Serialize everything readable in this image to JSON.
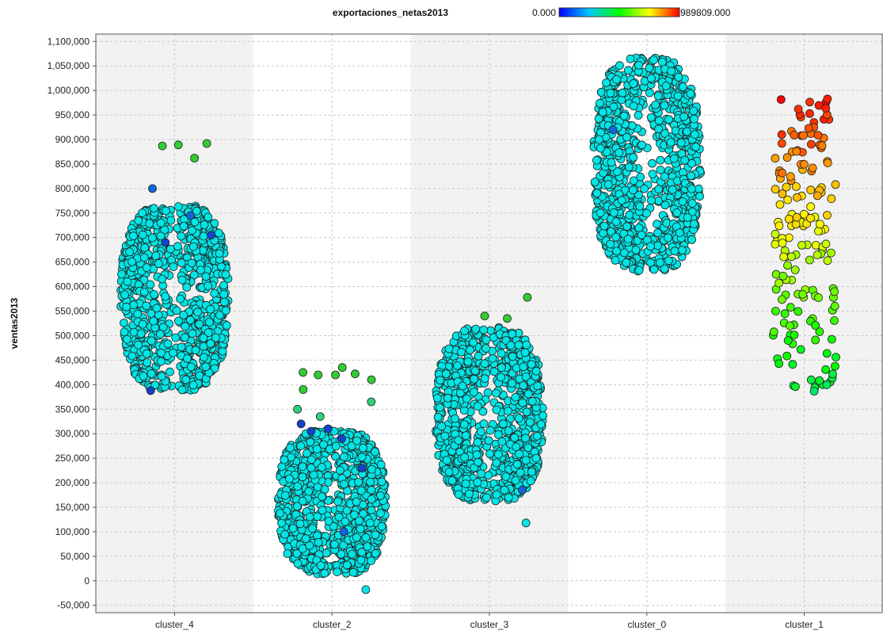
{
  "chart_data": {
    "type": "scatter",
    "x_axis": {
      "categorical": true,
      "categories": [
        "cluster_4",
        "cluster_2",
        "cluster_3",
        "cluster_0",
        "cluster_1"
      ],
      "grid": true
    },
    "y_axis": {
      "label": "ventas2013",
      "ylim": [
        -65000,
        1115000
      ],
      "ticks": [
        -50000,
        0,
        50000,
        100000,
        150000,
        200000,
        250000,
        300000,
        350000,
        400000,
        450000,
        500000,
        550000,
        600000,
        650000,
        700000,
        750000,
        800000,
        850000,
        900000,
        950000,
        1000000,
        1050000,
        1100000
      ],
      "tick_labels": [
        "-50,000",
        "0",
        "50,000",
        "100,000",
        "150,000",
        "200,000",
        "250,000",
        "300,000",
        "350,000",
        "400,000",
        "450,000",
        "500,000",
        "550,000",
        "600,000",
        "650,000",
        "700,000",
        "750,000",
        "800,000",
        "850,000",
        "900,000",
        "950,000",
        "1,000,000",
        "1,050,000",
        "1,100,000"
      ],
      "grid": true
    },
    "color_legend": {
      "attribute": "exportaciones_netas2013",
      "min_label": "0.000",
      "max_label": "989809.000",
      "placement": "top",
      "colormap": [
        "#0000ff",
        "#00c8ff",
        "#00ff00",
        "#ffff00",
        "#ff0000"
      ]
    },
    "clusters": [
      {
        "name": "cluster_4",
        "y_range": [
          385000,
          770000
        ],
        "approx_count": 900,
        "dominant_color": "#00e5e5",
        "outliers": [
          {
            "y": 862000,
            "color": "#33cc33"
          },
          {
            "y": 887000,
            "color": "#33cc33"
          },
          {
            "y": 889000,
            "color": "#33cc33"
          },
          {
            "y": 892000,
            "color": "#33cc33"
          },
          {
            "y": 800000,
            "color": "#1166dd"
          },
          {
            "y": 745000,
            "color": "#1166dd"
          },
          {
            "y": 690000,
            "color": "#1144cc"
          },
          {
            "y": 705000,
            "color": "#1144cc"
          },
          {
            "y": 388000,
            "color": "#1144cc"
          }
        ]
      },
      {
        "name": "cluster_2",
        "y_range": [
          10000,
          310000
        ],
        "approx_count": 900,
        "dominant_color": "#00e5e5",
        "outliers": [
          {
            "y": -18000,
            "color": "#00e5e5"
          },
          {
            "y": 420000,
            "color": "#33cc33"
          },
          {
            "y": 425000,
            "color": "#33cc33"
          },
          {
            "y": 435000,
            "color": "#33cc33"
          },
          {
            "y": 422000,
            "color": "#33cc33"
          },
          {
            "y": 420000,
            "color": "#33cc33"
          },
          {
            "y": 410000,
            "color": "#33cc33"
          },
          {
            "y": 390000,
            "color": "#33cc33"
          },
          {
            "y": 365000,
            "color": "#2ed07a"
          },
          {
            "y": 350000,
            "color": "#2ed07a"
          },
          {
            "y": 335000,
            "color": "#2ed07a"
          },
          {
            "y": 320000,
            "color": "#1144cc"
          },
          {
            "y": 310000,
            "color": "#1144cc"
          },
          {
            "y": 305000,
            "color": "#1144cc"
          },
          {
            "y": 290000,
            "color": "#1144cc"
          },
          {
            "y": 230000,
            "color": "#1144cc"
          },
          {
            "y": 100000,
            "color": "#1166dd"
          }
        ]
      },
      {
        "name": "cluster_3",
        "y_range": [
          160000,
          520000
        ],
        "approx_count": 900,
        "dominant_color": "#00e5e5",
        "outliers": [
          {
            "y": 578000,
            "color": "#33cc33"
          },
          {
            "y": 540000,
            "color": "#33cc33"
          },
          {
            "y": 535000,
            "color": "#33cc33"
          },
          {
            "y": 118000,
            "color": "#00e5e5"
          },
          {
            "y": 185000,
            "color": "#1166dd"
          }
        ]
      },
      {
        "name": "cluster_0",
        "y_range": [
          628000,
          1070000
        ],
        "approx_count": 900,
        "dominant_color": "#00e5e5",
        "outliers": [
          {
            "y": 920000,
            "color": "#1166dd"
          }
        ]
      },
      {
        "name": "cluster_1",
        "y_range": [
          385000,
          990000
        ],
        "approx_count": 170,
        "dominant_color": "mixed",
        "outliers": []
      }
    ]
  }
}
